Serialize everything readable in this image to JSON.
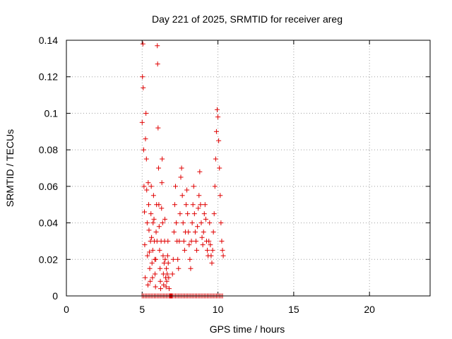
{
  "chart_data": {
    "type": "scatter",
    "title": "Day 221 of 2025, SRMTID for receiver areg",
    "xlabel": "GPS time / hours",
    "ylabel": "SRMTID / TECUs",
    "xlim": [
      0,
      24
    ],
    "ylim": [
      0,
      0.14
    ],
    "xticks": [
      "0",
      "5",
      "10",
      "15",
      "20"
    ],
    "yticks": [
      "0",
      "0.02",
      "0.04",
      "0.06",
      "0.08",
      "0.1",
      "0.12",
      "0.14"
    ],
    "grid": true,
    "marker": "+",
    "color": "#e00000",
    "series": [
      {
        "x": [
          5.0,
          5.02,
          5.05,
          5.07,
          5.1,
          5.12,
          5.15,
          5.17,
          5.2,
          5.22,
          5.25,
          5.28,
          5.3,
          5.33,
          5.35,
          5.38,
          5.4,
          5.43,
          5.45,
          5.48,
          5.5,
          5.53,
          5.55,
          5.58,
          5.6,
          5.62,
          5.65,
          5.68,
          5.7,
          5.72,
          5.75,
          5.78,
          5.8,
          5.83,
          5.85,
          5.88,
          5.9,
          5.92,
          5.95,
          5.98,
          6.0,
          6.02,
          6.05,
          6.08,
          6.1,
          6.12,
          6.15,
          6.18,
          6.2,
          6.22,
          6.25,
          6.28,
          6.3,
          6.32,
          6.35,
          6.38,
          6.4,
          6.42,
          6.45,
          6.48,
          6.5,
          6.52,
          6.55,
          6.58,
          6.6,
          6.62,
          6.65,
          6.68,
          6.7,
          6.72,
          6.75,
          6.78,
          6.8,
          6.82,
          6.85,
          6.88,
          6.9,
          6.92,
          6.95,
          6.98,
          7.0,
          7.05,
          7.1,
          7.15,
          7.2,
          7.25,
          7.3,
          7.35,
          7.4,
          7.45,
          7.5,
          7.55,
          7.6,
          7.65,
          7.7,
          7.75,
          7.8,
          7.85,
          7.9,
          7.95,
          8.0,
          8.05,
          8.1,
          8.15,
          8.2,
          8.25,
          8.3,
          8.35,
          8.4,
          8.45,
          8.5,
          8.55,
          8.6,
          8.65,
          8.7,
          8.75,
          8.8,
          8.85,
          8.9,
          8.95,
          9.0,
          9.05,
          9.1,
          9.15,
          9.2,
          9.25,
          9.3,
          9.35,
          9.4,
          9.45,
          9.5,
          9.55,
          9.6,
          9.65,
          9.7,
          9.75,
          9.8,
          9.85,
          9.9,
          9.95,
          10.0,
          10.05,
          10.1,
          10.15,
          10.2,
          10.25,
          10.3,
          10.35,
          5.0,
          5.1,
          5.2,
          5.3,
          5.4,
          5.5,
          5.6,
          5.7,
          5.8,
          5.9,
          6.0,
          6.1,
          6.2,
          6.3,
          6.4,
          6.5,
          6.6,
          6.7,
          6.8,
          6.9,
          7.0,
          7.1,
          7.2,
          7.3,
          7.4,
          7.5,
          7.6,
          7.7,
          7.8,
          7.9,
          8.0,
          8.1,
          8.2,
          8.3,
          8.4,
          8.5,
          8.6,
          8.7,
          8.8,
          8.9,
          9.0,
          9.1,
          9.2,
          9.3,
          9.4,
          9.5,
          9.6,
          9.7,
          9.8,
          9.9,
          10.0,
          10.1,
          10.2,
          10.3
        ],
        "y": [
          0.095,
          0.12,
          0.138,
          0.114,
          0.08,
          0.06,
          0.046,
          0.028,
          0.01,
          0.086,
          0.1,
          0.075,
          0.058,
          0.04,
          0.022,
          0.006,
          0.062,
          0.05,
          0.036,
          0.024,
          0.015,
          0.008,
          0.03,
          0.045,
          0.06,
          0.032,
          0.018,
          0.01,
          0.025,
          0.04,
          0.055,
          0.042,
          0.03,
          0.02,
          0.012,
          0.005,
          0.02,
          0.035,
          0.05,
          0.03,
          0.137,
          0.127,
          0.092,
          0.07,
          0.05,
          0.038,
          0.025,
          0.015,
          0.008,
          0.004,
          0.03,
          0.048,
          0.062,
          0.075,
          0.04,
          0.022,
          0.012,
          0.006,
          0.018,
          0.03,
          0.042,
          0.02,
          0.01,
          0.005,
          0.015,
          0.008,
          0.012,
          0.022,
          0.03,
          0.018,
          0.01,
          0.004,
          0.0,
          0.0,
          0.0,
          0.0,
          0.0,
          0.0,
          0.0,
          0.0,
          0.012,
          0.02,
          0.035,
          0.05,
          0.06,
          0.04,
          0.03,
          0.02,
          0.015,
          0.03,
          0.045,
          0.065,
          0.07,
          0.055,
          0.04,
          0.03,
          0.025,
          0.035,
          0.05,
          0.058,
          0.045,
          0.035,
          0.028,
          0.02,
          0.015,
          0.03,
          0.04,
          0.05,
          0.06,
          0.045,
          0.035,
          0.03,
          0.025,
          0.038,
          0.048,
          0.055,
          0.068,
          0.05,
          0.04,
          0.032,
          0.028,
          0.035,
          0.045,
          0.05,
          0.042,
          0.03,
          0.025,
          0.022,
          0.03,
          0.04,
          0.028,
          0.022,
          0.018,
          0.025,
          0.035,
          0.045,
          0.06,
          0.075,
          0.09,
          0.102,
          0.098,
          0.085,
          0.07,
          0.055,
          0.04,
          0.03,
          0.025,
          0.022,
          0.0,
          0.0,
          0.0,
          0.0,
          0.0,
          0.0,
          0.0,
          0.0,
          0.0,
          0.0,
          0.0,
          0.0,
          0.0,
          0.0,
          0.0,
          0.0,
          0.0,
          0.0,
          0.0,
          0.0,
          0.0,
          0.0,
          0.0,
          0.0,
          0.0,
          0.0,
          0.0,
          0.0,
          0.0,
          0.0,
          0.0,
          0.0,
          0.0,
          0.0,
          0.0,
          0.0,
          0.0,
          0.0,
          0.0,
          0.0,
          0.0,
          0.0,
          0.0,
          0.0,
          0.0,
          0.0,
          0.0,
          0.0,
          0.0,
          0.0,
          0.0,
          0.0,
          0.0,
          0.0
        ]
      }
    ]
  }
}
